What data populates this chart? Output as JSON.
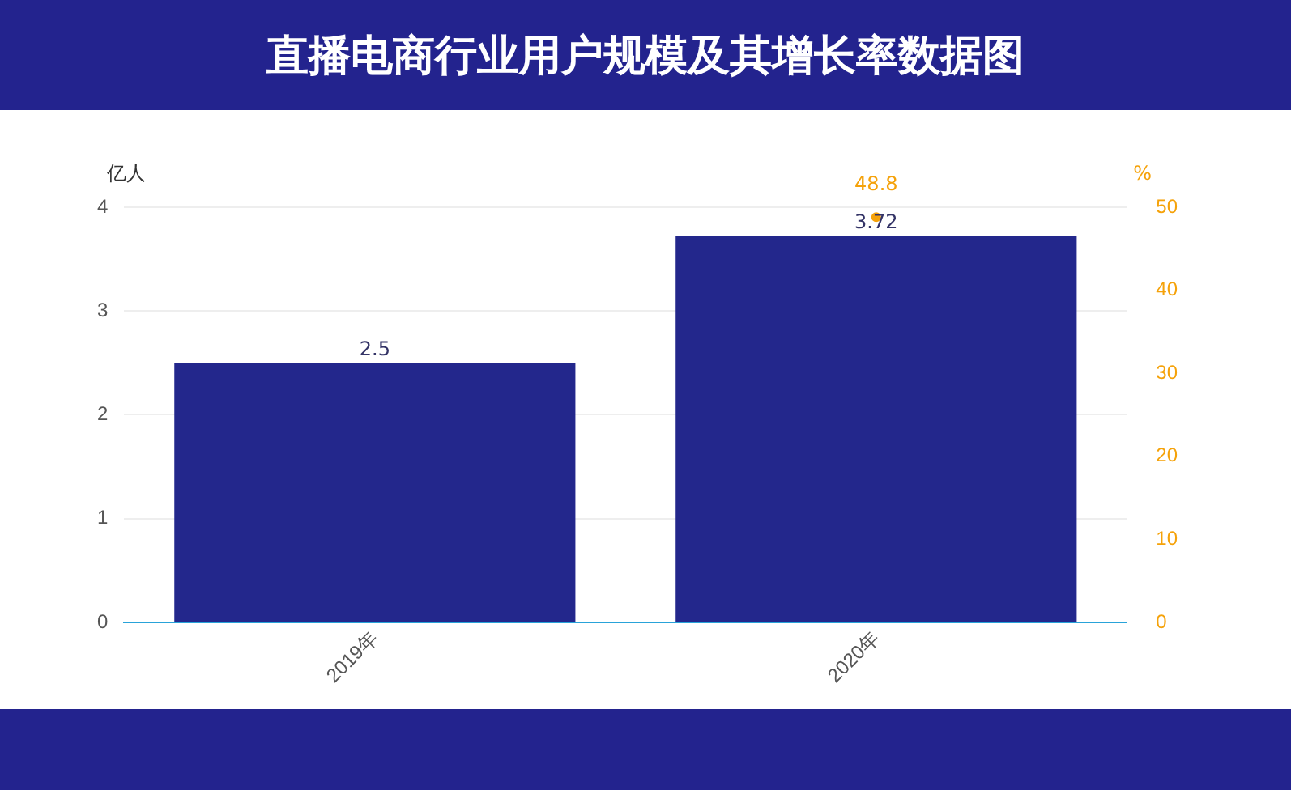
{
  "chart_data": {
    "type": "bar",
    "title": "直播电商行业用户规模及其增长率数据图",
    "ylabel": "亿人",
    "y2label": "%",
    "categories": [
      "2019年",
      "2020年"
    ],
    "series": [
      {
        "color": "#23278c",
        "values": [
          2.5,
          3.72
        ]
      },
      {
        "type": "line",
        "axis": "y2",
        "color": "#f5a20a",
        "values": [
          null,
          48.8
        ]
      }
    ],
    "ylim": [
      0,
      4
    ],
    "yticks": [
      0,
      1,
      2,
      3,
      4
    ],
    "y2lim": [
      0,
      50
    ],
    "y2ticks": [
      0,
      10,
      20,
      30,
      40,
      50
    ],
    "grid": "y",
    "legend": false,
    "marker": "circle",
    "data_labels": true
  }
}
